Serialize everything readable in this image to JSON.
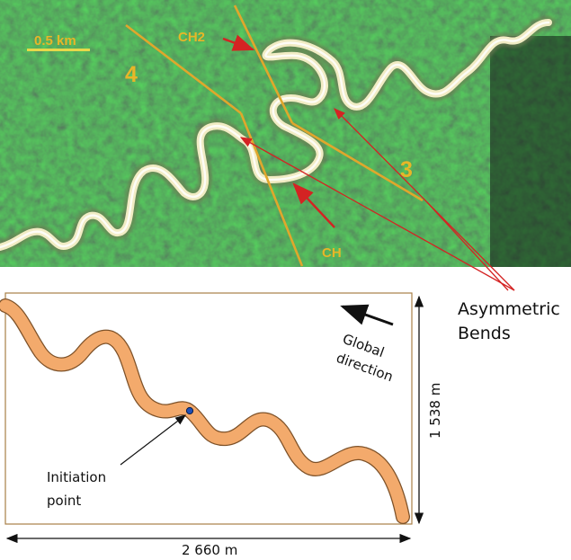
{
  "satellite": {
    "scale_label": "0.5 km",
    "region_left": "4",
    "region_right": "3",
    "channel_upper": "CH2",
    "channel_lower": "CH"
  },
  "annotation": {
    "bends_line1": "Asymmetric",
    "bends_line2": "Bends"
  },
  "simulation": {
    "direction_line1": "Global",
    "direction_line2": "direction",
    "initiation_line1": "Initiation",
    "initiation_line2": "point",
    "height_label": "1 538 m",
    "width_label": "2 660 m"
  },
  "colors": {
    "satellite_bg": "#1a2a1c",
    "river_bright": "#f1ecc4",
    "fault_line": "#e0a72c",
    "arrow_red": "#d42323",
    "channel_fill": "#f3aa6c",
    "channel_edge": "#8a5a32",
    "initiation_dot": "#1f4fb5"
  }
}
